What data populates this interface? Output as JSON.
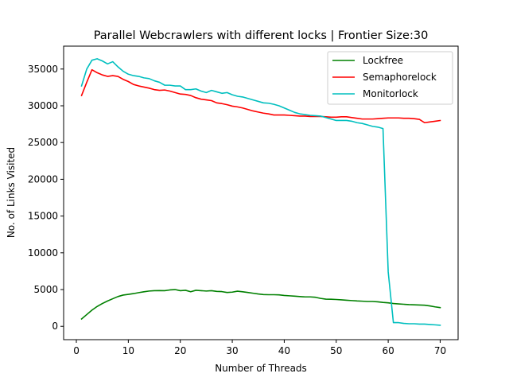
{
  "chart_data": {
    "type": "line",
    "title": "Parallel Webcrawlers with different locks | Frontier Size:30",
    "xlabel": "Number of Threads",
    "ylabel": "No. of Links Visited",
    "xlim": [
      -2.45,
      73.45
    ],
    "ylim": [
      -1815,
      38115
    ],
    "x_ticks": [
      0,
      10,
      20,
      30,
      40,
      50,
      60,
      70
    ],
    "y_ticks": [
      0,
      5000,
      10000,
      15000,
      20000,
      25000,
      30000,
      35000
    ],
    "grid": false,
    "legend_position": "top-right",
    "x": [
      1,
      2,
      3,
      4,
      5,
      6,
      7,
      8,
      9,
      10,
      11,
      12,
      13,
      14,
      15,
      16,
      17,
      18,
      19,
      20,
      21,
      22,
      23,
      24,
      25,
      26,
      27,
      28,
      29,
      30,
      31,
      32,
      33,
      34,
      35,
      36,
      37,
      38,
      39,
      40,
      41,
      42,
      43,
      44,
      45,
      46,
      47,
      48,
      49,
      50,
      51,
      52,
      53,
      54,
      55,
      56,
      57,
      58,
      59,
      60,
      61,
      62,
      63,
      64,
      65,
      66,
      67,
      68,
      69,
      70
    ],
    "series": [
      {
        "name": "Lockfree",
        "color": "#008000",
        "values": [
          1000,
          1600,
          2200,
          2700,
          3100,
          3450,
          3750,
          4050,
          4250,
          4350,
          4450,
          4580,
          4700,
          4800,
          4850,
          4860,
          4850,
          4950,
          5000,
          4850,
          4900,
          4700,
          4900,
          4850,
          4800,
          4850,
          4750,
          4720,
          4600,
          4650,
          4780,
          4700,
          4600,
          4500,
          4400,
          4320,
          4300,
          4300,
          4280,
          4200,
          4150,
          4100,
          4050,
          4000,
          4000,
          3950,
          3800,
          3700,
          3680,
          3650,
          3600,
          3550,
          3500,
          3450,
          3420,
          3380,
          3380,
          3330,
          3250,
          3200,
          3100,
          3050,
          3000,
          2950,
          2930,
          2900,
          2870,
          2780,
          2650,
          2550
        ]
      },
      {
        "name": "Semaphorelock",
        "color": "#ff0000",
        "values": [
          31400,
          33200,
          34900,
          34500,
          34200,
          34000,
          34100,
          34000,
          33600,
          33300,
          32900,
          32700,
          32550,
          32400,
          32200,
          32100,
          32150,
          32000,
          31800,
          31600,
          31550,
          31400,
          31100,
          30900,
          30800,
          30700,
          30400,
          30300,
          30150,
          29950,
          29850,
          29700,
          29500,
          29300,
          29150,
          29000,
          28900,
          28750,
          28750,
          28750,
          28700,
          28650,
          28600,
          28600,
          28550,
          28550,
          28550,
          28500,
          28450,
          28450,
          28500,
          28500,
          28400,
          28300,
          28200,
          28200,
          28200,
          28250,
          28300,
          28350,
          28350,
          28350,
          28300,
          28300,
          28250,
          28150,
          27700,
          27800,
          27900,
          28000
        ]
      },
      {
        "name": "Monitorlock",
        "color": "#00bfbf",
        "values": [
          32700,
          35000,
          36200,
          36400,
          36100,
          35700,
          36000,
          35300,
          34700,
          34300,
          34100,
          34000,
          33800,
          33700,
          33400,
          33200,
          32800,
          32800,
          32700,
          32700,
          32200,
          32200,
          32300,
          32000,
          31800,
          32100,
          31900,
          31700,
          31800,
          31500,
          31300,
          31200,
          31000,
          30800,
          30600,
          30400,
          30350,
          30200,
          30000,
          29700,
          29400,
          29100,
          28900,
          28800,
          28700,
          28650,
          28600,
          28400,
          28200,
          28000,
          28000,
          28000,
          27900,
          27700,
          27600,
          27400,
          27200,
          27100,
          26900,
          7400,
          500,
          500,
          400,
          350,
          350,
          300,
          300,
          250,
          200,
          150
        ]
      }
    ]
  }
}
